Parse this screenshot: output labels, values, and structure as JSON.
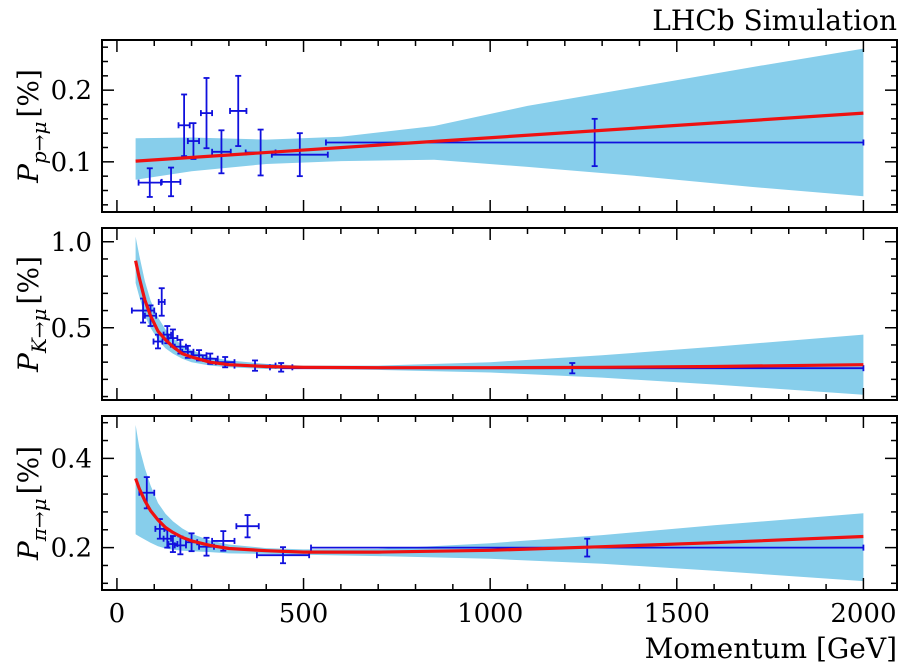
{
  "header": "LHCb Simulation",
  "xlabel": "Momentum [GeV]",
  "chart_data": [
    {
      "type": "line",
      "panel": "proton",
      "ylabel": {
        "base": "P",
        "sub": "p→μ",
        "unit": "[%]"
      },
      "xlim": [
        -40,
        2090
      ],
      "ylim": [
        0.03,
        0.27
      ],
      "xticks": [
        0,
        500,
        1000,
        1500,
        2000
      ],
      "yticks": [
        0.1,
        0.2
      ],
      "ytick_labels": [
        "0.1",
        "0.2"
      ],
      "fit": {
        "x": [
          50,
          2000
        ],
        "y": [
          0.101,
          0.168
        ]
      },
      "band": {
        "x": [
          50,
          200,
          400,
          600,
          850,
          1100,
          1400,
          1700,
          2000
        ],
        "upper": [
          0.133,
          0.134,
          0.131,
          0.135,
          0.15,
          0.178,
          0.205,
          0.232,
          0.258
        ],
        "lower": [
          0.075,
          0.087,
          0.097,
          0.101,
          0.103,
          0.093,
          0.08,
          0.065,
          0.052
        ]
      },
      "points": [
        {
          "x": 88,
          "y": 0.071,
          "xerr": 30,
          "yerr": 0.02
        },
        {
          "x": 145,
          "y": 0.072,
          "xerr": 25,
          "yerr": 0.02
        },
        {
          "x": 180,
          "y": 0.151,
          "xerr": 15,
          "yerr": 0.043
        },
        {
          "x": 205,
          "y": 0.129,
          "xerr": 15,
          "yerr": 0.025
        },
        {
          "x": 240,
          "y": 0.168,
          "xerr": 15,
          "yerr": 0.049
        },
        {
          "x": 280,
          "y": 0.114,
          "xerr": 25,
          "yerr": 0.03
        },
        {
          "x": 325,
          "y": 0.171,
          "xerr": 22,
          "yerr": 0.049
        },
        {
          "x": 385,
          "y": 0.113,
          "xerr": 40,
          "yerr": 0.032
        },
        {
          "x": 490,
          "y": 0.11,
          "xerr": 75,
          "yerr": 0.03
        },
        {
          "x": 1280,
          "y": 0.127,
          "xerr": 720,
          "yerr": 0.033
        }
      ]
    },
    {
      "type": "line",
      "panel": "kaon",
      "ylabel": {
        "base": "P",
        "sub": "K→μ",
        "unit": "[%]"
      },
      "xlim": [
        -40,
        2090
      ],
      "ylim": [
        0.08,
        1.08
      ],
      "xticks": [
        0,
        500,
        1000,
        1500,
        2000
      ],
      "yticks": [
        0.5,
        1.0
      ],
      "ytick_labels": [
        "0.5",
        "1.0"
      ],
      "fit": {
        "x": [
          50,
          60,
          75,
          90,
          110,
          130,
          150,
          175,
          200,
          250,
          300,
          400,
          500,
          700,
          1000,
          1300,
          1600,
          2000
        ],
        "y": [
          0.89,
          0.79,
          0.66,
          0.57,
          0.48,
          0.43,
          0.39,
          0.35,
          0.33,
          0.3,
          0.285,
          0.275,
          0.27,
          0.268,
          0.268,
          0.27,
          0.275,
          0.285
        ]
      },
      "band": {
        "x": [
          50,
          60,
          75,
          90,
          110,
          130,
          150,
          175,
          200,
          250,
          300,
          400,
          500,
          700,
          1000,
          1300,
          1600,
          2000
        ],
        "upper": [
          1.03,
          0.92,
          0.77,
          0.66,
          0.56,
          0.49,
          0.44,
          0.4,
          0.37,
          0.33,
          0.31,
          0.29,
          0.28,
          0.28,
          0.3,
          0.34,
          0.39,
          0.46
        ],
        "lower": [
          0.76,
          0.68,
          0.57,
          0.5,
          0.43,
          0.38,
          0.35,
          0.32,
          0.3,
          0.28,
          0.27,
          0.26,
          0.26,
          0.255,
          0.24,
          0.21,
          0.17,
          0.11
        ]
      },
      "points": [
        {
          "x": 70,
          "y": 0.6,
          "xerr": 30,
          "yerr": 0.07
        },
        {
          "x": 90,
          "y": 0.57,
          "xerr": 15,
          "yerr": 0.06
        },
        {
          "x": 110,
          "y": 0.42,
          "xerr": 12,
          "yerr": 0.04
        },
        {
          "x": 120,
          "y": 0.65,
          "xerr": 8,
          "yerr": 0.08
        },
        {
          "x": 135,
          "y": 0.46,
          "xerr": 10,
          "yerr": 0.05
        },
        {
          "x": 150,
          "y": 0.44,
          "xerr": 12,
          "yerr": 0.05
        },
        {
          "x": 170,
          "y": 0.39,
          "xerr": 15,
          "yerr": 0.04
        },
        {
          "x": 190,
          "y": 0.36,
          "xerr": 15,
          "yerr": 0.035
        },
        {
          "x": 220,
          "y": 0.34,
          "xerr": 20,
          "yerr": 0.03
        },
        {
          "x": 250,
          "y": 0.32,
          "xerr": 20,
          "yerr": 0.03
        },
        {
          "x": 290,
          "y": 0.3,
          "xerr": 25,
          "yerr": 0.03
        },
        {
          "x": 370,
          "y": 0.28,
          "xerr": 55,
          "yerr": 0.03
        },
        {
          "x": 440,
          "y": 0.27,
          "xerr": 30,
          "yerr": 0.025
        },
        {
          "x": 1220,
          "y": 0.265,
          "xerr": 780,
          "yerr": 0.03
        }
      ]
    },
    {
      "type": "line",
      "panel": "pion",
      "ylabel": {
        "base": "P",
        "sub": "π→μ",
        "unit": "[%]"
      },
      "xlim": [
        -40,
        2090
      ],
      "ylim": [
        0.105,
        0.495
      ],
      "xticks": [
        0,
        500,
        1000,
        1500,
        2000
      ],
      "yticks": [
        0.2,
        0.4
      ],
      "ytick_labels": [
        "0.2",
        "0.4"
      ],
      "fit": {
        "x": [
          50,
          60,
          75,
          90,
          110,
          130,
          150,
          175,
          200,
          250,
          300,
          400,
          500,
          700,
          1000,
          1300,
          1600,
          2000
        ],
        "y": [
          0.355,
          0.332,
          0.305,
          0.283,
          0.262,
          0.245,
          0.234,
          0.223,
          0.215,
          0.205,
          0.198,
          0.193,
          0.19,
          0.19,
          0.194,
          0.202,
          0.211,
          0.225
        ]
      },
      "band": {
        "x": [
          50,
          60,
          75,
          90,
          110,
          130,
          150,
          175,
          200,
          250,
          300,
          400,
          500,
          700,
          1000,
          1300,
          1600,
          2000
        ],
        "upper": [
          0.475,
          0.425,
          0.378,
          0.34,
          0.3,
          0.276,
          0.259,
          0.243,
          0.231,
          0.216,
          0.207,
          0.199,
          0.196,
          0.197,
          0.21,
          0.228,
          0.25,
          0.277
        ],
        "lower": [
          0.23,
          0.225,
          0.218,
          0.211,
          0.203,
          0.198,
          0.195,
          0.193,
          0.192,
          0.19,
          0.187,
          0.186,
          0.184,
          0.181,
          0.175,
          0.164,
          0.148,
          0.125
        ]
      },
      "points": [
        {
          "x": 80,
          "y": 0.323,
          "xerr": 20,
          "yerr": 0.035
        },
        {
          "x": 115,
          "y": 0.242,
          "xerr": 12,
          "yerr": 0.022
        },
        {
          "x": 135,
          "y": 0.22,
          "xerr": 10,
          "yerr": 0.02
        },
        {
          "x": 150,
          "y": 0.208,
          "xerr": 12,
          "yerr": 0.018
        },
        {
          "x": 170,
          "y": 0.205,
          "xerr": 15,
          "yerr": 0.02
        },
        {
          "x": 200,
          "y": 0.212,
          "xerr": 15,
          "yerr": 0.02
        },
        {
          "x": 240,
          "y": 0.202,
          "xerr": 20,
          "yerr": 0.02
        },
        {
          "x": 285,
          "y": 0.215,
          "xerr": 30,
          "yerr": 0.022
        },
        {
          "x": 350,
          "y": 0.248,
          "xerr": 30,
          "yerr": 0.025
        },
        {
          "x": 445,
          "y": 0.183,
          "xerr": 70,
          "yerr": 0.018
        },
        {
          "x": 1260,
          "y": 0.2,
          "xerr": 740,
          "yerr": 0.02
        }
      ]
    }
  ],
  "colors": {
    "fit": "#ee1111",
    "band": "#87ceeb",
    "points": "#1010dd",
    "axes": "#000000"
  }
}
